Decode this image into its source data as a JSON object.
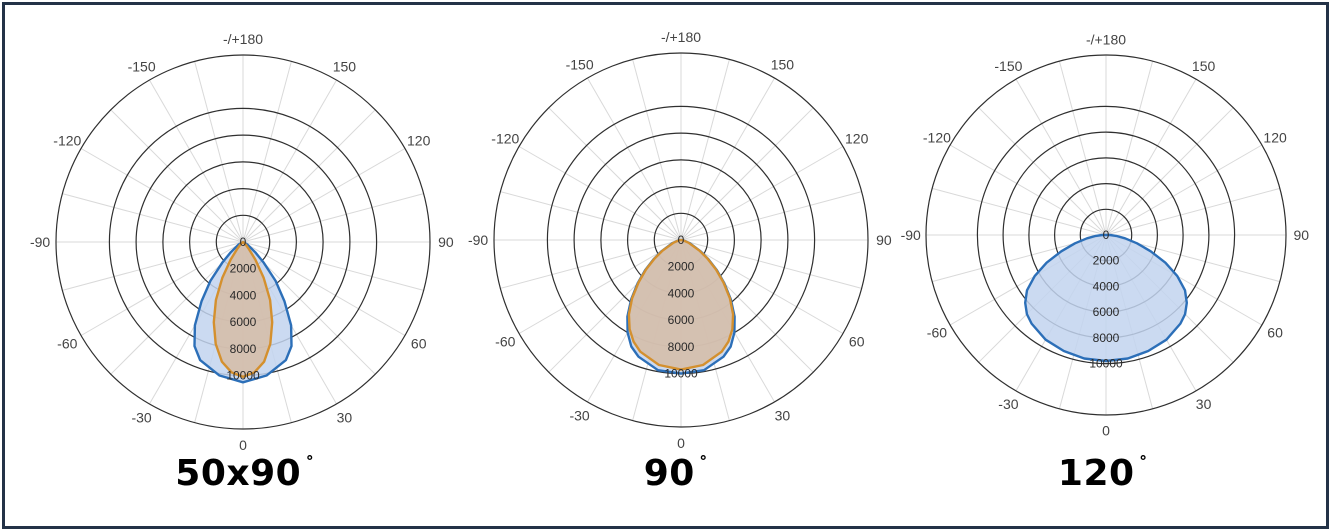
{
  "chart_data": [
    {
      "type": "polar",
      "title": "",
      "caption": "50x90",
      "caption_degree": "˚",
      "angle_labels": [
        "-/+180",
        "150",
        "120",
        "90",
        "60",
        "30",
        "0",
        "-30",
        "-60",
        "-90",
        "-120",
        "-150"
      ],
      "angle_values": [
        180,
        150,
        120,
        90,
        60,
        30,
        0,
        -30,
        -60,
        -90,
        -120,
        -150
      ],
      "radial_labels": [
        "0",
        "2000",
        "4000",
        "6000",
        "8000",
        "10000"
      ],
      "radial_values": [
        0,
        2000,
        4000,
        6000,
        8000,
        10000
      ],
      "r_max": 14000,
      "series": [
        {
          "color": "#2c6fb8",
          "fill": "#c2d4ef",
          "points": [
            [
              0,
              10500
            ],
            [
              10,
              10150
            ],
            [
              20,
              9400
            ],
            [
              25,
              8600
            ],
            [
              30,
              7200
            ],
            [
              35,
              5400
            ],
            [
              40,
              3800
            ],
            [
              45,
              2200
            ],
            [
              50,
              1200
            ],
            [
              60,
              400
            ],
            [
              75,
              0
            ],
            [
              -75,
              0
            ],
            [
              -60,
              400
            ],
            [
              -50,
              1200
            ],
            [
              -45,
              2200
            ],
            [
              -40,
              3800
            ],
            [
              -35,
              5400
            ],
            [
              -30,
              7200
            ],
            [
              -25,
              8600
            ],
            [
              -20,
              9400
            ],
            [
              -10,
              10150
            ]
          ]
        },
        {
          "color": "#d4902e",
          "fill": "#d6bca6",
          "points": [
            [
              0,
              10100
            ],
            [
              5,
              9800
            ],
            [
              10,
              9100
            ],
            [
              15,
              7900
            ],
            [
              20,
              6400
            ],
            [
              25,
              4800
            ],
            [
              30,
              3100
            ],
            [
              35,
              1600
            ],
            [
              40,
              700
            ],
            [
              50,
              200
            ],
            [
              60,
              0
            ],
            [
              -60,
              0
            ],
            [
              -50,
              200
            ],
            [
              -40,
              700
            ],
            [
              -35,
              1600
            ],
            [
              -30,
              3100
            ],
            [
              -25,
              4800
            ],
            [
              -20,
              6400
            ],
            [
              -15,
              7900
            ],
            [
              -10,
              9100
            ],
            [
              -5,
              9800
            ]
          ]
        }
      ]
    },
    {
      "type": "polar",
      "title": "",
      "caption": "90",
      "caption_degree": "˚",
      "angle_labels": [
        "-/+180",
        "150",
        "120",
        "90",
        "60",
        "30",
        "0",
        "-30",
        "-60",
        "-90",
        "-120",
        "-150"
      ],
      "angle_values": [
        180,
        150,
        120,
        90,
        60,
        30,
        0,
        -30,
        -60,
        -90,
        -120,
        -150
      ],
      "radial_labels": [
        "0",
        "2000",
        "4000",
        "6000",
        "8000",
        "10000"
      ],
      "radial_values": [
        0,
        2000,
        4000,
        6000,
        8000,
        10000
      ],
      "r_max": 14000,
      "series": [
        {
          "color": "#2c6fb8",
          "fill": "#c2d4ef",
          "points": [
            [
              0,
              10000
            ],
            [
              10,
              9900
            ],
            [
              20,
              9300
            ],
            [
              25,
              8800
            ],
            [
              30,
              8000
            ],
            [
              35,
              7000
            ],
            [
              40,
              5800
            ],
            [
              45,
              4600
            ],
            [
              50,
              3500
            ],
            [
              55,
              2500
            ],
            [
              60,
              1700
            ],
            [
              70,
              700
            ],
            [
              80,
              200
            ],
            [
              90,
              0
            ],
            [
              -90,
              0
            ],
            [
              -80,
              200
            ],
            [
              -70,
              700
            ],
            [
              -60,
              1700
            ],
            [
              -55,
              2500
            ],
            [
              -50,
              3500
            ],
            [
              -45,
              4600
            ],
            [
              -40,
              5800
            ],
            [
              -35,
              7000
            ],
            [
              -30,
              8000
            ],
            [
              -25,
              8800
            ],
            [
              -20,
              9300
            ],
            [
              -10,
              9900
            ]
          ]
        },
        {
          "color": "#d4902e",
          "fill": "#d6bca6",
          "points": [
            [
              0,
              9700
            ],
            [
              10,
              9500
            ],
            [
              20,
              8900
            ],
            [
              25,
              8400
            ],
            [
              30,
              7700
            ],
            [
              35,
              6800
            ],
            [
              40,
              5700
            ],
            [
              45,
              4500
            ],
            [
              50,
              3400
            ],
            [
              55,
              2400
            ],
            [
              60,
              1600
            ],
            [
              70,
              600
            ],
            [
              80,
              150
            ],
            [
              90,
              0
            ],
            [
              -90,
              0
            ],
            [
              -80,
              150
            ],
            [
              -70,
              600
            ],
            [
              -60,
              1600
            ],
            [
              -55,
              2400
            ],
            [
              -50,
              3400
            ],
            [
              -45,
              4500
            ],
            [
              -40,
              5700
            ],
            [
              -35,
              6800
            ],
            [
              -30,
              7700
            ],
            [
              -25,
              8400
            ],
            [
              -20,
              8900
            ],
            [
              -10,
              9500
            ]
          ]
        }
      ]
    },
    {
      "type": "polar",
      "title": "",
      "caption": "120",
      "caption_degree": "˚",
      "angle_labels": [
        "-/+180",
        "150",
        "120",
        "90",
        "60",
        "30",
        "0",
        "-30",
        "-60",
        "-90",
        "-120",
        "-150"
      ],
      "angle_values": [
        180,
        150,
        120,
        90,
        60,
        30,
        0,
        -30,
        -60,
        -90,
        -120,
        -150
      ],
      "radial_labels": [
        "0",
        "2000",
        "4000",
        "6000",
        "8000",
        "10000"
      ],
      "radial_values": [
        0,
        2000,
        4000,
        6000,
        8000,
        10000
      ],
      "r_max": 14000,
      "series": [
        {
          "color": "#2c6fb8",
          "fill": "#c2d4ef",
          "points": [
            [
              0,
              9800
            ],
            [
              10,
              9750
            ],
            [
              20,
              9600
            ],
            [
              30,
              9400
            ],
            [
              40,
              9000
            ],
            [
              45,
              8700
            ],
            [
              50,
              8200
            ],
            [
              55,
              7500
            ],
            [
              60,
              6400
            ],
            [
              65,
              5100
            ],
            [
              70,
              3700
            ],
            [
              75,
              2500
            ],
            [
              80,
              1500
            ],
            [
              85,
              800
            ],
            [
              90,
              300
            ],
            [
              95,
              0
            ],
            [
              -95,
              0
            ],
            [
              -90,
              300
            ],
            [
              -85,
              800
            ],
            [
              -80,
              1500
            ],
            [
              -75,
              2500
            ],
            [
              -70,
              3700
            ],
            [
              -65,
              5100
            ],
            [
              -60,
              6400
            ],
            [
              -55,
              7500
            ],
            [
              -50,
              8200
            ],
            [
              -45,
              8700
            ],
            [
              -40,
              9000
            ],
            [
              -30,
              9400
            ],
            [
              -20,
              9600
            ],
            [
              -10,
              9750
            ]
          ]
        }
      ]
    }
  ]
}
